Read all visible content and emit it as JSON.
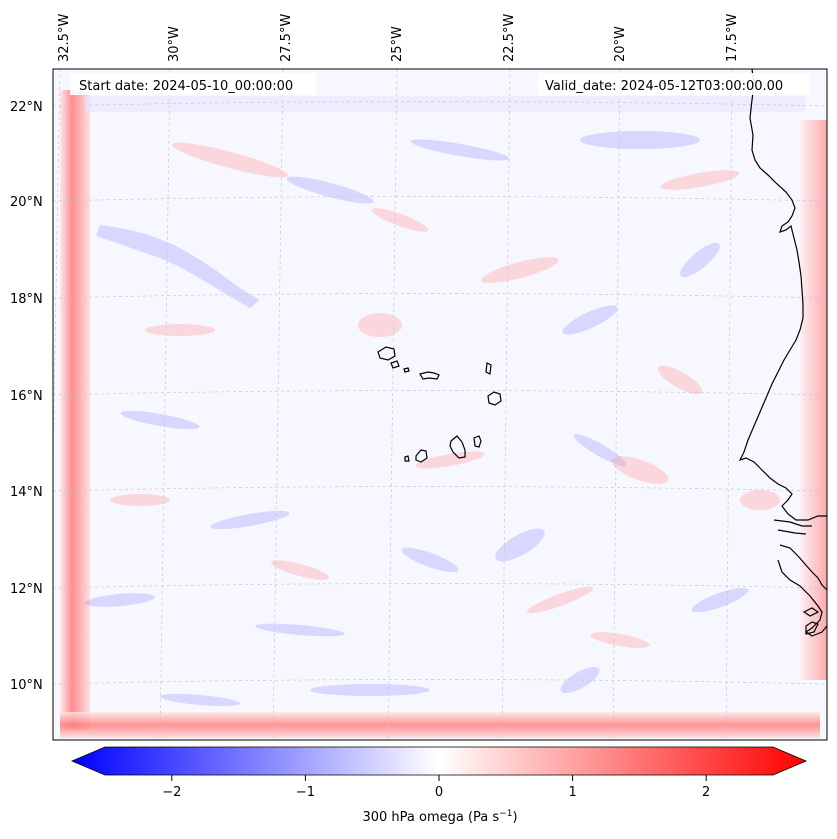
{
  "header": {
    "start_date": "Start date: 2024-05-10_00:00:00",
    "valid_date": "Valid_date: 2024-05-12T03:00:00.00"
  },
  "map": {
    "projection": "lambert-conic",
    "field": "300 hPa omega",
    "longitude_labels": [
      "32.5°W",
      "30°W",
      "27.5°W",
      "25°W",
      "22.5°W",
      "20°W",
      "17.5°W"
    ],
    "latitude_labels": [
      "22°N",
      "20°N",
      "18°N",
      "16°N",
      "14°N",
      "12°N",
      "10°N"
    ],
    "gridlines": "dashed-light-gray",
    "coastline_color": "#000000"
  },
  "colorbar": {
    "label": "300 hPa omega (Pa s",
    "label_sup": "−1",
    "label_close": ")",
    "min": -2.5,
    "max": 2.5,
    "colormap": "bwr",
    "extend": "both",
    "ticks": [
      {
        "value": -2,
        "label": "−2"
      },
      {
        "value": -1,
        "label": "−1"
      },
      {
        "value": 0,
        "label": "0"
      },
      {
        "value": 1,
        "label": "1"
      },
      {
        "value": 2,
        "label": "2"
      }
    ],
    "colors": {
      "low": "#0000ff",
      "mid": "#ffffff",
      "high": "#ff0000"
    }
  }
}
